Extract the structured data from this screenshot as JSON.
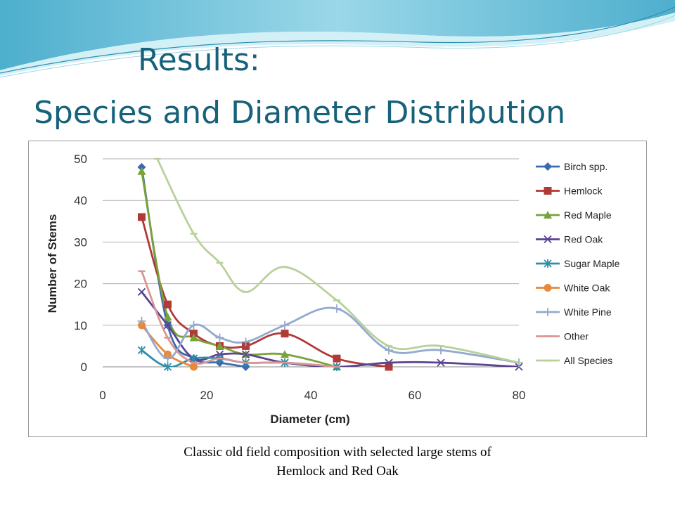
{
  "slide": {
    "title_line1": "Results:",
    "title_line2": "Species and Diameter Distribution",
    "caption_line1": "Classic old field composition with selected large stems of",
    "caption_line2": "Hemlock and Red Oak",
    "accent_color": "#17627a"
  },
  "chart_data": {
    "type": "line",
    "title": "",
    "xlabel": "Diameter (cm)",
    "ylabel": "Number of Stems",
    "xlim": [
      0,
      80
    ],
    "ylim": [
      0,
      50
    ],
    "xticks": [
      0,
      20,
      40,
      60,
      80
    ],
    "yticks": [
      0,
      10,
      20,
      30,
      40,
      50
    ],
    "grid": "horizontal",
    "legend": "right",
    "smooth": true,
    "series": [
      {
        "name": "Birch spp.",
        "color": "#3a6ab0",
        "marker": "diamond",
        "points": [
          [
            7.5,
            48
          ],
          [
            12.5,
            10
          ],
          [
            17.5,
            2
          ],
          [
            22.5,
            1
          ],
          [
            27.5,
            0
          ]
        ]
      },
      {
        "name": "Hemlock",
        "color": "#b03a36",
        "marker": "square",
        "points": [
          [
            7.5,
            36
          ],
          [
            12.5,
            15
          ],
          [
            17.5,
            8
          ],
          [
            22.5,
            5
          ],
          [
            27.5,
            5
          ],
          [
            35,
            8
          ],
          [
            45,
            2
          ],
          [
            55,
            0
          ]
        ]
      },
      {
        "name": "Red Maple",
        "color": "#7aa23a",
        "marker": "triangle",
        "points": [
          [
            7.5,
            47
          ],
          [
            12.5,
            12
          ],
          [
            17.5,
            7
          ],
          [
            22.5,
            5
          ],
          [
            27.5,
            3
          ],
          [
            35,
            3
          ],
          [
            45,
            0
          ]
        ]
      },
      {
        "name": "Red Oak",
        "color": "#5a4290",
        "marker": "x",
        "points": [
          [
            7.5,
            18
          ],
          [
            12.5,
            10
          ],
          [
            17.5,
            2
          ],
          [
            22.5,
            3
          ],
          [
            27.5,
            3
          ],
          [
            35,
            1
          ],
          [
            45,
            0
          ],
          [
            55,
            1
          ],
          [
            65,
            1
          ],
          [
            80,
            0
          ]
        ]
      },
      {
        "name": "Sugar Maple",
        "color": "#2e8ea8",
        "marker": "star",
        "points": [
          [
            7.5,
            4
          ],
          [
            12.5,
            0
          ],
          [
            17.5,
            2
          ],
          [
            22.5,
            2
          ],
          [
            27.5,
            1
          ],
          [
            35,
            1
          ],
          [
            45,
            0
          ]
        ]
      },
      {
        "name": "White Oak",
        "color": "#e8893a",
        "marker": "circle",
        "points": [
          [
            7.5,
            10
          ],
          [
            12.5,
            3
          ],
          [
            17.5,
            0
          ]
        ]
      },
      {
        "name": "White Pine",
        "color": "#93a9cf",
        "marker": "plus",
        "points": [
          [
            7.5,
            11
          ],
          [
            12.5,
            2
          ],
          [
            17.5,
            10
          ],
          [
            22.5,
            7
          ],
          [
            27.5,
            6
          ],
          [
            35,
            10
          ],
          [
            45,
            14
          ],
          [
            55,
            4
          ],
          [
            65,
            4
          ],
          [
            80,
            1
          ]
        ]
      },
      {
        "name": "Other",
        "color": "#d99694",
        "marker": "dash",
        "points": [
          [
            7.5,
            23
          ],
          [
            12.5,
            7
          ],
          [
            17.5,
            1
          ],
          [
            22.5,
            2
          ],
          [
            27.5,
            1
          ],
          [
            35,
            1
          ],
          [
            45,
            0
          ]
        ]
      },
      {
        "name": "All Species",
        "color": "#b8d19a",
        "marker": "dash",
        "points": [
          [
            10.5,
            50
          ],
          [
            17.5,
            32
          ],
          [
            22.5,
            25
          ],
          [
            27.5,
            18
          ],
          [
            35,
            24
          ],
          [
            45,
            16
          ],
          [
            55,
            5
          ],
          [
            65,
            5
          ],
          [
            80,
            1
          ]
        ]
      }
    ]
  }
}
